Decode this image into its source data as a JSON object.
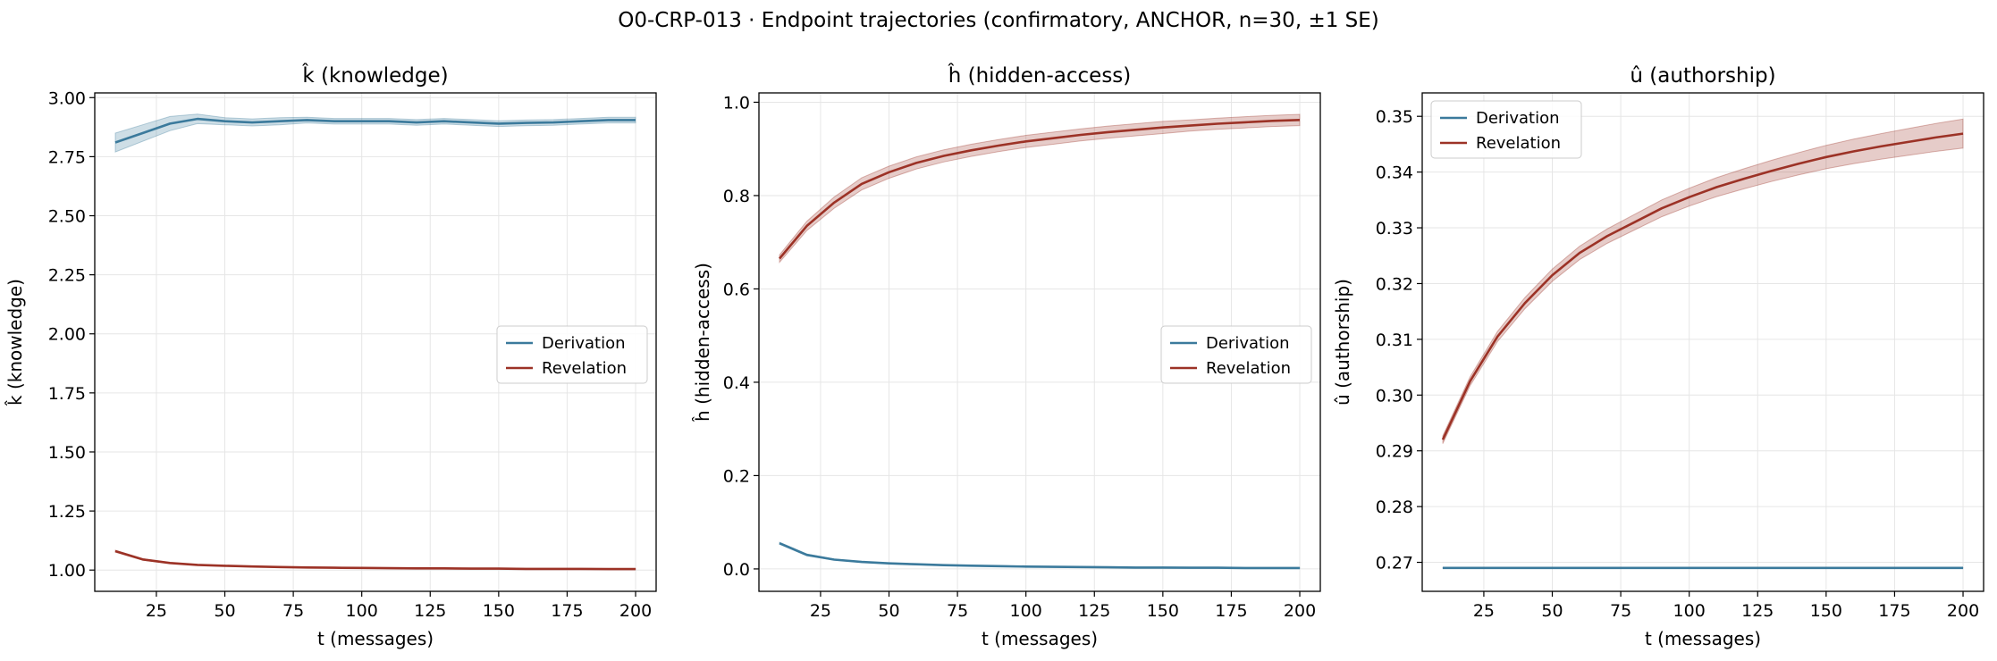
{
  "figure": {
    "title": "O0-CRP-013 · Endpoint trajectories (confirmatory, ANCHOR, n=30, ±1 SE)"
  },
  "colors": {
    "derivation": "#3b7a9c",
    "revelation": "#9c3226",
    "grid": "#e6e6e6"
  },
  "chart_data": [
    {
      "type": "line",
      "title": "k̂ (knowledge)",
      "xlabel": "t (messages)",
      "ylabel": "k̂ (knowledge)",
      "xlim": [
        2.5,
        207.5
      ],
      "ylim": [
        0.91,
        3.02
      ],
      "xticks": [
        25,
        50,
        75,
        100,
        125,
        150,
        175,
        200
      ],
      "yticks": [
        1.0,
        1.25,
        1.5,
        1.75,
        2.0,
        2.25,
        2.5,
        2.75,
        3.0
      ],
      "ytick_labels": [
        "1.00",
        "1.25",
        "1.50",
        "1.75",
        "2.00",
        "2.25",
        "2.50",
        "2.75",
        "3.00"
      ],
      "grid": true,
      "legend_position": "center-right",
      "x": [
        10,
        20,
        30,
        40,
        50,
        60,
        70,
        80,
        90,
        100,
        110,
        120,
        130,
        140,
        150,
        160,
        170,
        180,
        190,
        200
      ],
      "series": [
        {
          "name": "Derivation",
          "values": [
            2.81,
            2.85,
            2.89,
            2.91,
            2.9,
            2.895,
            2.9,
            2.905,
            2.9,
            2.9,
            2.9,
            2.895,
            2.9,
            2.895,
            2.89,
            2.893,
            2.895,
            2.9,
            2.905,
            2.905
          ],
          "se": [
            0.04,
            0.035,
            0.03,
            0.02,
            0.015,
            0.015,
            0.015,
            0.012,
            0.012,
            0.012,
            0.012,
            0.012,
            0.012,
            0.012,
            0.012,
            0.012,
            0.012,
            0.012,
            0.012,
            0.012
          ]
        },
        {
          "name": "Revelation",
          "values": [
            1.08,
            1.045,
            1.03,
            1.022,
            1.018,
            1.015,
            1.013,
            1.011,
            1.01,
            1.009,
            1.008,
            1.007,
            1.007,
            1.006,
            1.006,
            1.005,
            1.005,
            1.005,
            1.004,
            1.004
          ],
          "se": [
            0.004,
            0.003,
            0.002,
            0.002,
            0.002,
            0.002,
            0.002,
            0.002,
            0.002,
            0.002,
            0.002,
            0.002,
            0.002,
            0.002,
            0.002,
            0.002,
            0.002,
            0.002,
            0.002,
            0.002
          ]
        }
      ]
    },
    {
      "type": "line",
      "title": "ĥ (hidden-access)",
      "xlabel": "t (messages)",
      "ylabel": "ĥ (hidden-access)",
      "xlim": [
        2.5,
        207.5
      ],
      "ylim": [
        -0.048,
        1.02
      ],
      "xticks": [
        25,
        50,
        75,
        100,
        125,
        150,
        175,
        200
      ],
      "yticks": [
        0.0,
        0.2,
        0.4,
        0.6,
        0.8,
        1.0
      ],
      "ytick_labels": [
        "0.0",
        "0.2",
        "0.4",
        "0.6",
        "0.8",
        "1.0"
      ],
      "grid": true,
      "legend_position": "center-right",
      "x": [
        10,
        20,
        30,
        40,
        50,
        60,
        70,
        80,
        90,
        100,
        110,
        120,
        130,
        140,
        150,
        160,
        170,
        180,
        190,
        200
      ],
      "series": [
        {
          "name": "Derivation",
          "values": [
            0.055,
            0.03,
            0.02,
            0.015,
            0.012,
            0.01,
            0.008,
            0.007,
            0.006,
            0.005,
            0.0045,
            0.004,
            0.0035,
            0.003,
            0.003,
            0.0025,
            0.0025,
            0.002,
            0.002,
            0.002
          ],
          "se": [
            0.002,
            0.002,
            0.001,
            0.001,
            0.001,
            0.001,
            0.001,
            0.001,
            0.001,
            0.001,
            0.001,
            0.001,
            0.001,
            0.001,
            0.001,
            0.001,
            0.001,
            0.001,
            0.001,
            0.001
          ]
        },
        {
          "name": "Revelation",
          "values": [
            0.665,
            0.735,
            0.785,
            0.825,
            0.85,
            0.87,
            0.885,
            0.897,
            0.907,
            0.916,
            0.923,
            0.93,
            0.936,
            0.941,
            0.946,
            0.95,
            0.954,
            0.957,
            0.96,
            0.962
          ],
          "se": [
            0.008,
            0.01,
            0.012,
            0.013,
            0.013,
            0.013,
            0.013,
            0.013,
            0.013,
            0.013,
            0.013,
            0.013,
            0.013,
            0.013,
            0.013,
            0.012,
            0.012,
            0.012,
            0.012,
            0.012
          ]
        }
      ]
    },
    {
      "type": "line",
      "title": "û (authorship)",
      "xlabel": "t (messages)",
      "ylabel": "û (authorship)",
      "xlim": [
        2.5,
        207.5
      ],
      "ylim": [
        0.2648,
        0.3542
      ],
      "xticks": [
        25,
        50,
        75,
        100,
        125,
        150,
        175,
        200
      ],
      "yticks": [
        0.27,
        0.28,
        0.29,
        0.3,
        0.31,
        0.32,
        0.33,
        0.34,
        0.35
      ],
      "ytick_labels": [
        "0.27",
        "0.28",
        "0.29",
        "0.30",
        "0.31",
        "0.32",
        "0.33",
        "0.34",
        "0.35"
      ],
      "grid": true,
      "legend_position": "upper-left",
      "x": [
        10,
        20,
        30,
        40,
        50,
        60,
        70,
        80,
        90,
        100,
        110,
        120,
        130,
        140,
        150,
        160,
        170,
        180,
        190,
        200
      ],
      "series": [
        {
          "name": "Derivation",
          "values": [
            0.269,
            0.269,
            0.269,
            0.269,
            0.269,
            0.269,
            0.269,
            0.269,
            0.269,
            0.269,
            0.269,
            0.269,
            0.269,
            0.269,
            0.269,
            0.269,
            0.269,
            0.269,
            0.269,
            0.269
          ],
          "se": [
            5e-05,
            5e-05,
            5e-05,
            5e-05,
            5e-05,
            5e-05,
            5e-05,
            5e-05,
            5e-05,
            5e-05,
            5e-05,
            5e-05,
            5e-05,
            5e-05,
            5e-05,
            5e-05,
            5e-05,
            5e-05,
            5e-05,
            5e-05
          ]
        },
        {
          "name": "Revelation",
          "values": [
            0.292,
            0.3025,
            0.3105,
            0.3165,
            0.3215,
            0.3255,
            0.3285,
            0.331,
            0.3335,
            0.3355,
            0.3373,
            0.3388,
            0.3402,
            0.3415,
            0.3427,
            0.3437,
            0.3446,
            0.3454,
            0.3462,
            0.3469
          ],
          "se": [
            0.0007,
            0.0008,
            0.0009,
            0.001,
            0.0011,
            0.0012,
            0.0013,
            0.0014,
            0.0015,
            0.0016,
            0.0017,
            0.0018,
            0.0019,
            0.002,
            0.0021,
            0.0022,
            0.0023,
            0.0024,
            0.0025,
            0.0026
          ]
        }
      ]
    }
  ]
}
